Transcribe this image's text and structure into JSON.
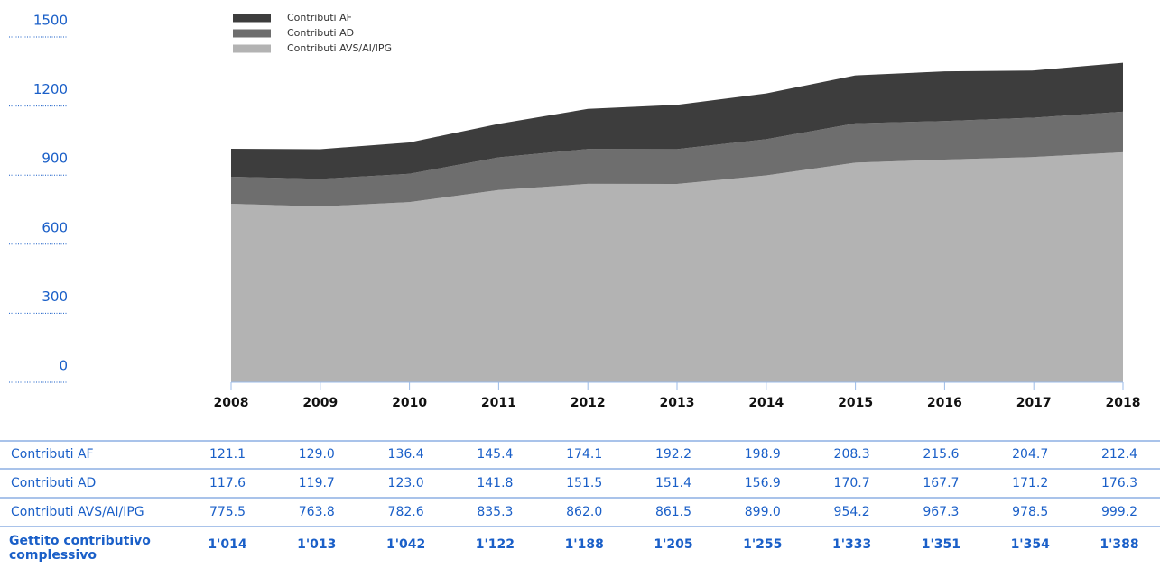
{
  "chart_data": {
    "type": "stacked_area",
    "categories": [
      "2008",
      "2009",
      "2010",
      "2011",
      "2012",
      "2013",
      "2014",
      "2015",
      "2016",
      "2017",
      "2018"
    ],
    "series": [
      {
        "name": "Contributi AF",
        "color": "#3d3d3d",
        "values": [
          121.1,
          129.0,
          136.4,
          145.4,
          174.1,
          192.2,
          198.9,
          208.3,
          215.6,
          204.7,
          212.4
        ],
        "value_labels": [
          "121.1",
          "129.0",
          "136.4",
          "145.4",
          "174.1",
          "192.2",
          "198.9",
          "208.3",
          "215.6",
          "204.7",
          "212.4"
        ]
      },
      {
        "name": "Contributi AD",
        "color": "#6e6e6e",
        "values": [
          117.6,
          119.7,
          123.0,
          141.8,
          151.5,
          151.4,
          156.9,
          170.7,
          167.7,
          171.2,
          176.3
        ],
        "value_labels": [
          "117.6",
          "119.7",
          "123.0",
          "141.8",
          "151.5",
          "151.4",
          "156.9",
          "170.7",
          "167.7",
          "171.2",
          "176.3"
        ]
      },
      {
        "name": "Contributi AVS/AI/IPG",
        "color": "#b3b3b3",
        "values": [
          775.5,
          763.8,
          782.6,
          835.3,
          862.0,
          861.5,
          899.0,
          954.2,
          967.3,
          978.5,
          999.2
        ],
        "value_labels": [
          "775.5",
          "763.8",
          "782.6",
          "835.3",
          "862.0",
          "861.5",
          "899.0",
          "954.2",
          "967.3",
          "978.5",
          "999.2"
        ]
      }
    ],
    "total": {
      "name": "Gettito contributivo complessivo",
      "values": [
        1014,
        1013,
        1042,
        1122,
        1188,
        1205,
        1255,
        1333,
        1351,
        1354,
        1388
      ],
      "value_labels": [
        "1'014",
        "1'013",
        "1'042",
        "1'122",
        "1'188",
        "1'205",
        "1'255",
        "1'333",
        "1'351",
        "1'354",
        "1'388"
      ]
    },
    "ylim": [
      0,
      1500
    ],
    "yticks": [
      0,
      300,
      600,
      900,
      1200,
      1500
    ]
  }
}
